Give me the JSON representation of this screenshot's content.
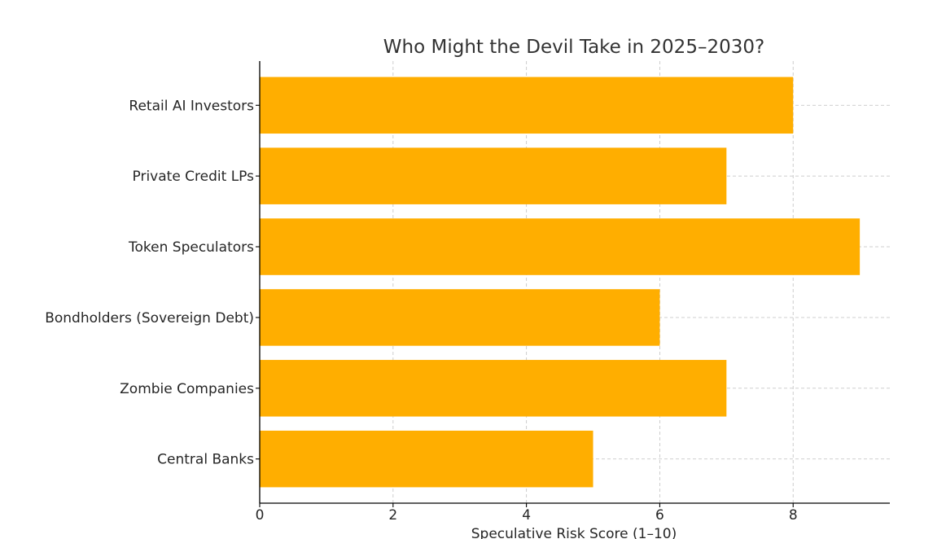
{
  "chart_data": {
    "type": "bar",
    "orientation": "horizontal",
    "title": "Who Might the Devil Take in 2025–2030?",
    "xlabel": "Speculative Risk Score (1–10)",
    "ylabel": "",
    "categories": [
      "Retail AI Investors",
      "Private Credit LPs",
      "Token Speculators",
      "Bondholders (Sovereign Debt)",
      "Zombie Companies",
      "Central Banks"
    ],
    "values": [
      8,
      7,
      9,
      6,
      7,
      5
    ],
    "xlim": [
      0,
      9.45
    ],
    "xticks": [
      0,
      2,
      4,
      6,
      8
    ],
    "bar_color": "#ffae00",
    "grid": true
  }
}
